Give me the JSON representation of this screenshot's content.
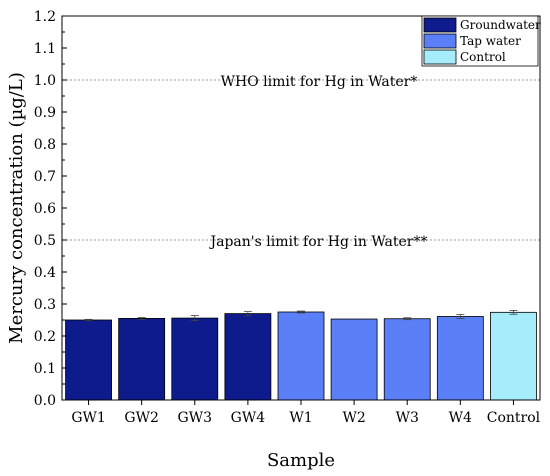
{
  "chart_data": {
    "type": "bar",
    "title": "",
    "xlabel": "Sample",
    "ylabel": "Mercury concentration (µg/L)",
    "ylim": [
      0,
      1.2
    ],
    "yticks": [
      "0.0",
      "0.1",
      "0.2",
      "0.3",
      "0.4",
      "0.5",
      "0.6",
      "0.7",
      "0.8",
      "0.9",
      "1.0",
      "1.1",
      "1.2"
    ],
    "categories": [
      "GW1",
      "GW2",
      "GW3",
      "GW4",
      "W1",
      "W2",
      "W3",
      "W4",
      "Control"
    ],
    "values": [
      0.25,
      0.255,
      0.256,
      0.27,
      0.275,
      0.253,
      0.254,
      0.261,
      0.274
    ],
    "errors": [
      0.002,
      0.003,
      0.008,
      0.007,
      0.003,
      0.0,
      0.003,
      0.006,
      0.006
    ],
    "groups": [
      "Groundwater",
      "Groundwater",
      "Groundwater",
      "Groundwater",
      "Tap water",
      "Tap water",
      "Tap water",
      "Tap water",
      "Control"
    ],
    "legend": [
      {
        "name": "Groundwater",
        "color": "#0d1b8c"
      },
      {
        "name": "Tap water",
        "color": "#5a7ff7"
      },
      {
        "name": "Control",
        "color": "#a6ecfa"
      }
    ],
    "legend_position": "top-right",
    "reference_lines": [
      {
        "value": 1.0,
        "label": "WHO limit for Hg in Water*"
      },
      {
        "value": 0.5,
        "label": "Japan's limit for Hg in Water**"
      }
    ],
    "grid": false
  }
}
